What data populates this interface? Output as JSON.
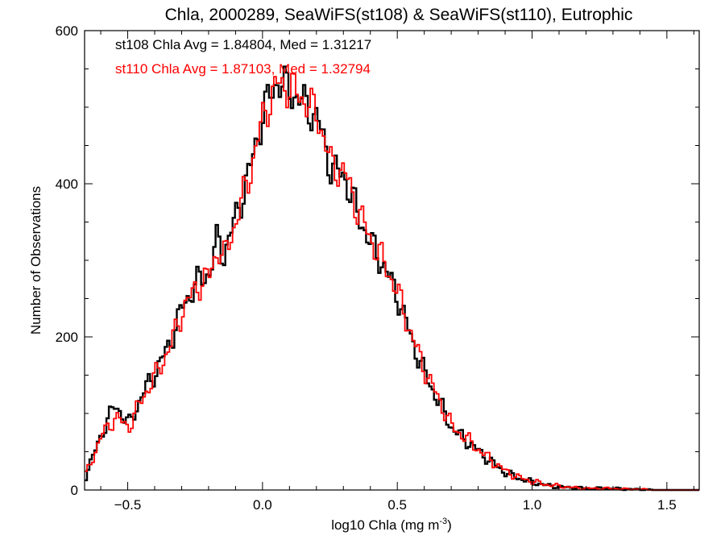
{
  "chart_data": {
    "type": "histogram",
    "title": "Chla, 2000289, SeaWiFS(st108) & SeaWiFS(st110), Eutrophic",
    "xlabel": "log10 Chla (mg m",
    "xlabel_sup": "-3",
    "xlabel_end": ")",
    "ylabel": "Number of Observations",
    "xlim": [
      -0.66,
      1.62
    ],
    "ylim": [
      0,
      600
    ],
    "xticks": [
      -0.5,
      0.0,
      0.5,
      1.0,
      1.5
    ],
    "xtick_labels": [
      "−0.5",
      "0.0",
      "0.5",
      "1.0",
      "1.5"
    ],
    "yticks": [
      0,
      200,
      400,
      600
    ],
    "ytick_labels": [
      "0",
      "200",
      "400",
      "600"
    ],
    "grid": false,
    "annotations": [
      {
        "text": "st108 Chla Avg = 1.84804, Med = 1.31217",
        "color": "#000000"
      },
      {
        "text": "st110 Chla Avg = 1.87103, Med = 1.32794",
        "color": "#ff0000"
      }
    ],
    "series": [
      {
        "color": "#000000",
        "x": [
          -0.66,
          -0.6,
          -0.55,
          -0.5,
          -0.45,
          -0.4,
          -0.35,
          -0.3,
          -0.25,
          -0.2,
          -0.17,
          -0.15,
          -0.1,
          -0.05,
          0.0,
          0.05,
          0.1,
          0.15,
          0.2,
          0.25,
          0.3,
          0.35,
          0.4,
          0.45,
          0.5,
          0.55,
          0.6,
          0.65,
          0.7,
          0.75,
          0.8,
          0.85,
          0.9,
          0.95,
          1.0,
          1.05,
          1.1,
          1.15,
          1.2,
          1.25,
          1.3,
          1.35,
          1.4,
          1.45,
          1.5,
          1.55,
          1.62
        ],
        "y": [
          18,
          75,
          112,
          85,
          125,
          155,
          190,
          240,
          270,
          285,
          330,
          305,
          360,
          420,
          495,
          535,
          520,
          505,
          485,
          420,
          410,
          360,
          320,
          290,
          250,
          195,
          150,
          115,
          80,
          65,
          50,
          35,
          22,
          15,
          10,
          6,
          4,
          3,
          2,
          2,
          2,
          1,
          1,
          0,
          0,
          0,
          0
        ]
      },
      {
        "color": "#ff0000",
        "x": [
          -0.66,
          -0.6,
          -0.55,
          -0.5,
          -0.45,
          -0.4,
          -0.35,
          -0.3,
          -0.25,
          -0.2,
          -0.17,
          -0.15,
          -0.1,
          -0.05,
          0.0,
          0.05,
          0.1,
          0.15,
          0.2,
          0.25,
          0.3,
          0.35,
          0.4,
          0.45,
          0.5,
          0.55,
          0.6,
          0.65,
          0.7,
          0.75,
          0.8,
          0.85,
          0.9,
          0.95,
          1.0,
          1.05,
          1.1,
          1.15,
          1.2,
          1.25,
          1.3,
          1.35,
          1.4,
          1.45,
          1.5,
          1.55,
          1.62
        ],
        "y": [
          20,
          72,
          95,
          82,
          120,
          150,
          185,
          235,
          265,
          280,
          318,
          300,
          355,
          415,
          490,
          530,
          525,
          510,
          490,
          425,
          415,
          365,
          325,
          295,
          255,
          200,
          155,
          118,
          82,
          68,
          52,
          37,
          24,
          16,
          11,
          7,
          5,
          3,
          2,
          2,
          2,
          1,
          1,
          0,
          0,
          0,
          0
        ]
      }
    ]
  }
}
